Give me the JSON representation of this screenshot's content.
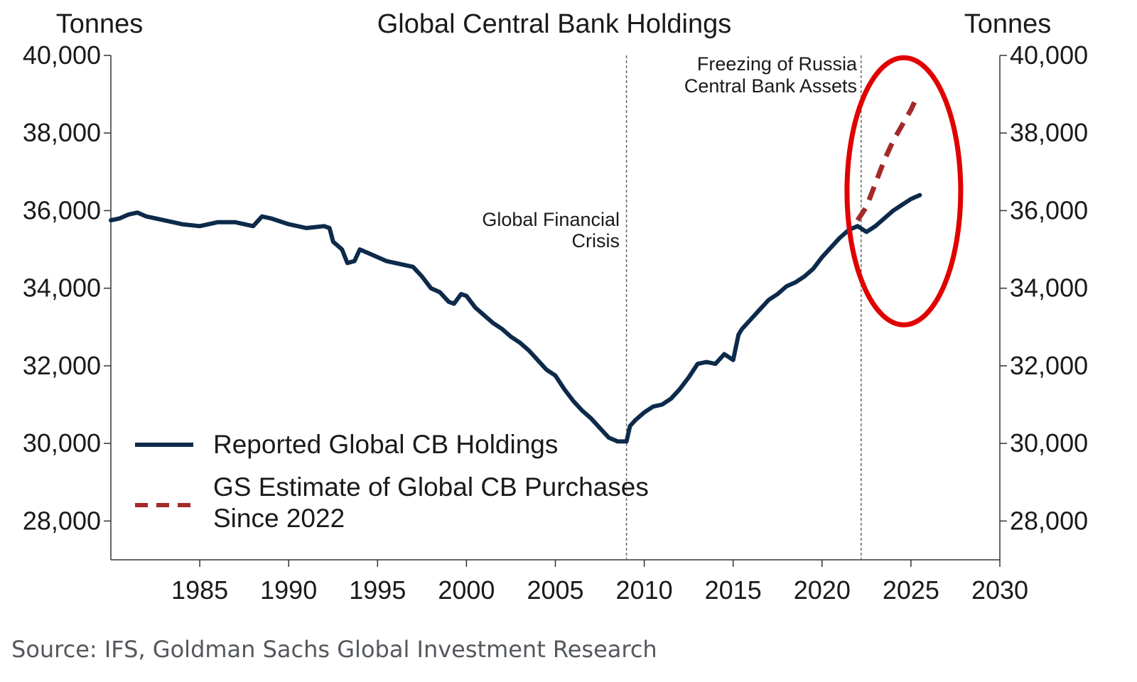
{
  "chart_data": {
    "type": "line",
    "title": "Global Central Bank Holdings",
    "ylabel_left": "Tonnes",
    "ylabel_right": "Tonnes",
    "xlim": [
      1980,
      2030
    ],
    "ylim": [
      27000,
      40000
    ],
    "x_ticks": [
      "1985",
      "1990",
      "1995",
      "2000",
      "2005",
      "2010",
      "2015",
      "2020",
      "2025",
      "2030"
    ],
    "y_ticks": [
      "28,000",
      "30,000",
      "32,000",
      "34,000",
      "36,000",
      "38,000",
      "40,000"
    ],
    "grid": false,
    "legend_position": "lower-left",
    "series": [
      {
        "name": "Reported Global CB Holdings",
        "color": "#0d2a4a",
        "style": "solid",
        "x": [
          1980.0,
          1980.5,
          1981.0,
          1981.5,
          1982.0,
          1983.0,
          1984.0,
          1985.0,
          1986.0,
          1987.0,
          1988.0,
          1988.5,
          1989.0,
          1990.0,
          1991.0,
          1992.0,
          1992.3,
          1992.5,
          1993.0,
          1993.3,
          1993.7,
          1994.0,
          1994.5,
          1995.0,
          1995.5,
          1996.0,
          1996.5,
          1997.0,
          1997.5,
          1998.0,
          1998.5,
          1999.0,
          1999.3,
          1999.7,
          2000.0,
          2000.5,
          2001.0,
          2001.5,
          2002.0,
          2002.5,
          2003.0,
          2003.5,
          2004.0,
          2004.5,
          2005.0,
          2005.5,
          2006.0,
          2006.5,
          2007.0,
          2007.5,
          2008.0,
          2008.5,
          2009.0,
          2009.2,
          2009.5,
          2010.0,
          2010.5,
          2011.0,
          2011.5,
          2012.0,
          2012.5,
          2013.0,
          2013.5,
          2014.0,
          2014.5,
          2015.0,
          2015.3,
          2015.5,
          2016.0,
          2016.5,
          2017.0,
          2017.5,
          2018.0,
          2018.5,
          2019.0,
          2019.5,
          2020.0,
          2020.5,
          2021.0,
          2021.5,
          2022.0,
          2022.5,
          2023.0,
          2023.5,
          2024.0,
          2024.5,
          2025.0,
          2025.5
        ],
        "y": [
          35750,
          35800,
          35900,
          35950,
          35850,
          35750,
          35650,
          35600,
          35700,
          35700,
          35600,
          35850,
          35800,
          35650,
          35550,
          35600,
          35550,
          35200,
          35000,
          34650,
          34700,
          35000,
          34900,
          34800,
          34700,
          34650,
          34600,
          34550,
          34300,
          34000,
          33900,
          33650,
          33600,
          33850,
          33800,
          33500,
          33300,
          33100,
          32950,
          32750,
          32600,
          32400,
          32150,
          31900,
          31750,
          31400,
          31100,
          30850,
          30650,
          30400,
          30150,
          30050,
          30050,
          30450,
          30600,
          30800,
          30950,
          31000,
          31150,
          31400,
          31700,
          32050,
          32100,
          32050,
          32300,
          32150,
          32800,
          32950,
          33200,
          33450,
          33700,
          33850,
          34050,
          34150,
          34300,
          34500,
          34800,
          35050,
          35300,
          35500,
          35600,
          35450,
          35600,
          35800,
          36000,
          36150,
          36300,
          36400
        ]
      },
      {
        "name": "GS Estimate of Global CB Purchases Since 2022",
        "color": "#a52a2a",
        "style": "dashed",
        "x": [
          2022.0,
          2022.5,
          2023.0,
          2023.5,
          2024.0,
          2024.5,
          2025.0,
          2025.3
        ],
        "y": [
          35750,
          36100,
          36700,
          37300,
          37800,
          38200,
          38600,
          38900
        ]
      }
    ],
    "legend": [
      {
        "label": "Reported Global CB Holdings"
      },
      {
        "label_line1": "GS Estimate of Global CB Purchases",
        "label_line2": "Since 2022"
      }
    ],
    "annotations": [
      {
        "x": 2009.0,
        "line1": "Global Financial",
        "line2": "Crisis"
      },
      {
        "x": 2022.2,
        "line1": "Freezing of Russia",
        "line2": "Central Bank Assets"
      }
    ],
    "highlight": {
      "shape": "ellipse",
      "color": "#e00000",
      "around_x": 2024.6,
      "around_y": 36500
    }
  },
  "source": "Source: IFS, Goldman Sachs Global Investment Research"
}
